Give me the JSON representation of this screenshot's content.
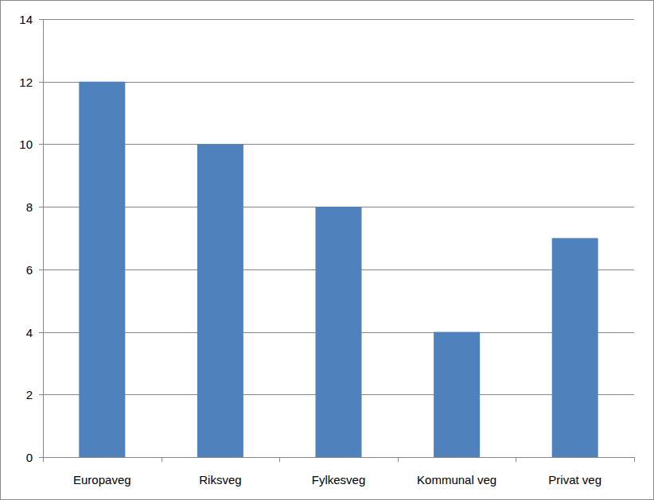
{
  "chart_data": {
    "type": "bar",
    "categories": [
      "Europaveg",
      "Riksveg",
      "Fylkesveg",
      "Kommunal veg",
      "Privat veg"
    ],
    "values": [
      12,
      10,
      8,
      4,
      7
    ],
    "color": "#4f81bd",
    "ylim": [
      0,
      14
    ],
    "yticks": [
      0,
      2,
      4,
      6,
      8,
      10,
      12,
      14
    ],
    "grid": true
  }
}
